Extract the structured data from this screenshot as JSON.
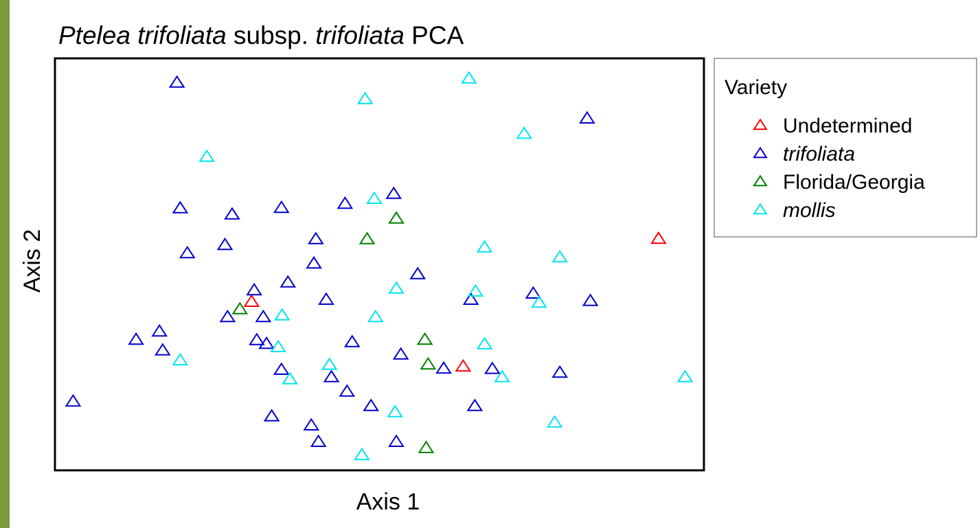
{
  "chart_data": {
    "type": "scatter",
    "title": [
      {
        "text": "Ptelea trifoliata",
        "italic": true
      },
      {
        "text": " subsp. ",
        "italic": false
      },
      {
        "text": "trifoliata",
        "italic": true
      },
      {
        "text": " PCA",
        "italic": false
      }
    ],
    "x_label": "Axis 1",
    "y_label": "Axis 2",
    "xlim": [
      0,
      100
    ],
    "ylim": [
      0,
      100
    ],
    "marker": "triangle",
    "legend": {
      "title": "Variety",
      "position": "outside-right-top"
    },
    "series": [
      {
        "name": "Undetermined",
        "italic": false,
        "color": "#ff0000",
        "x": [
          93.0,
          30.3,
          62.9
        ],
        "values": [
          56.3,
          41.0,
          25.3
        ]
      },
      {
        "name": "trifoliata",
        "italic": true,
        "color": "#0000cd",
        "x": [
          18.8,
          82.0,
          19.3,
          27.3,
          34.9,
          44.7,
          52.2,
          20.4,
          26.2,
          40.2,
          39.9,
          55.9,
          35.9,
          30.7,
          41.8,
          64.1,
          73.7,
          82.5,
          26.6,
          32.1,
          12.5,
          16.1,
          16.6,
          31.1,
          32.6,
          45.8,
          53.3,
          34.9,
          42.6,
          59.9,
          67.4,
          77.8,
          45.0,
          2.8,
          48.7,
          64.7,
          33.4,
          39.5,
          40.6,
          52.6
        ],
        "values": [
          94.2,
          85.5,
          63.7,
          62.2,
          63.8,
          64.8,
          67.2,
          52.8,
          54.8,
          56.2,
          50.3,
          47.7,
          45.7,
          43.8,
          41.5,
          41.5,
          43.0,
          41.2,
          37.3,
          37.3,
          31.8,
          33.8,
          29.2,
          31.7,
          30.8,
          31.2,
          28.2,
          24.5,
          22.7,
          24.8,
          24.7,
          23.8,
          19.2,
          16.8,
          15.7,
          15.7,
          13.2,
          11.0,
          7.0,
          7.0
        ]
      },
      {
        "name": "Florida/Georgia",
        "italic": false,
        "color": "#008000",
        "x": [
          52.6,
          48.1,
          28.5,
          57.0,
          57.5,
          57.2
        ],
        "values": [
          61.2,
          56.2,
          39.2,
          31.8,
          25.8,
          5.5
        ]
      },
      {
        "name": "mollis",
        "italic": true,
        "color": "#00e5ee",
        "x": [
          63.8,
          47.8,
          72.3,
          23.4,
          49.2,
          66.2,
          77.8,
          52.6,
          64.8,
          74.6,
          35.0,
          49.4,
          34.4,
          66.2,
          19.3,
          42.3,
          36.2,
          68.9,
          97.1,
          52.4,
          77.0,
          47.3
        ],
        "values": [
          95.2,
          90.2,
          81.8,
          76.2,
          66.0,
          54.2,
          51.8,
          44.2,
          43.5,
          40.8,
          37.7,
          37.3,
          30.0,
          30.7,
          26.8,
          25.7,
          22.2,
          22.7,
          22.7,
          14.2,
          11.7,
          3.8
        ]
      }
    ]
  }
}
